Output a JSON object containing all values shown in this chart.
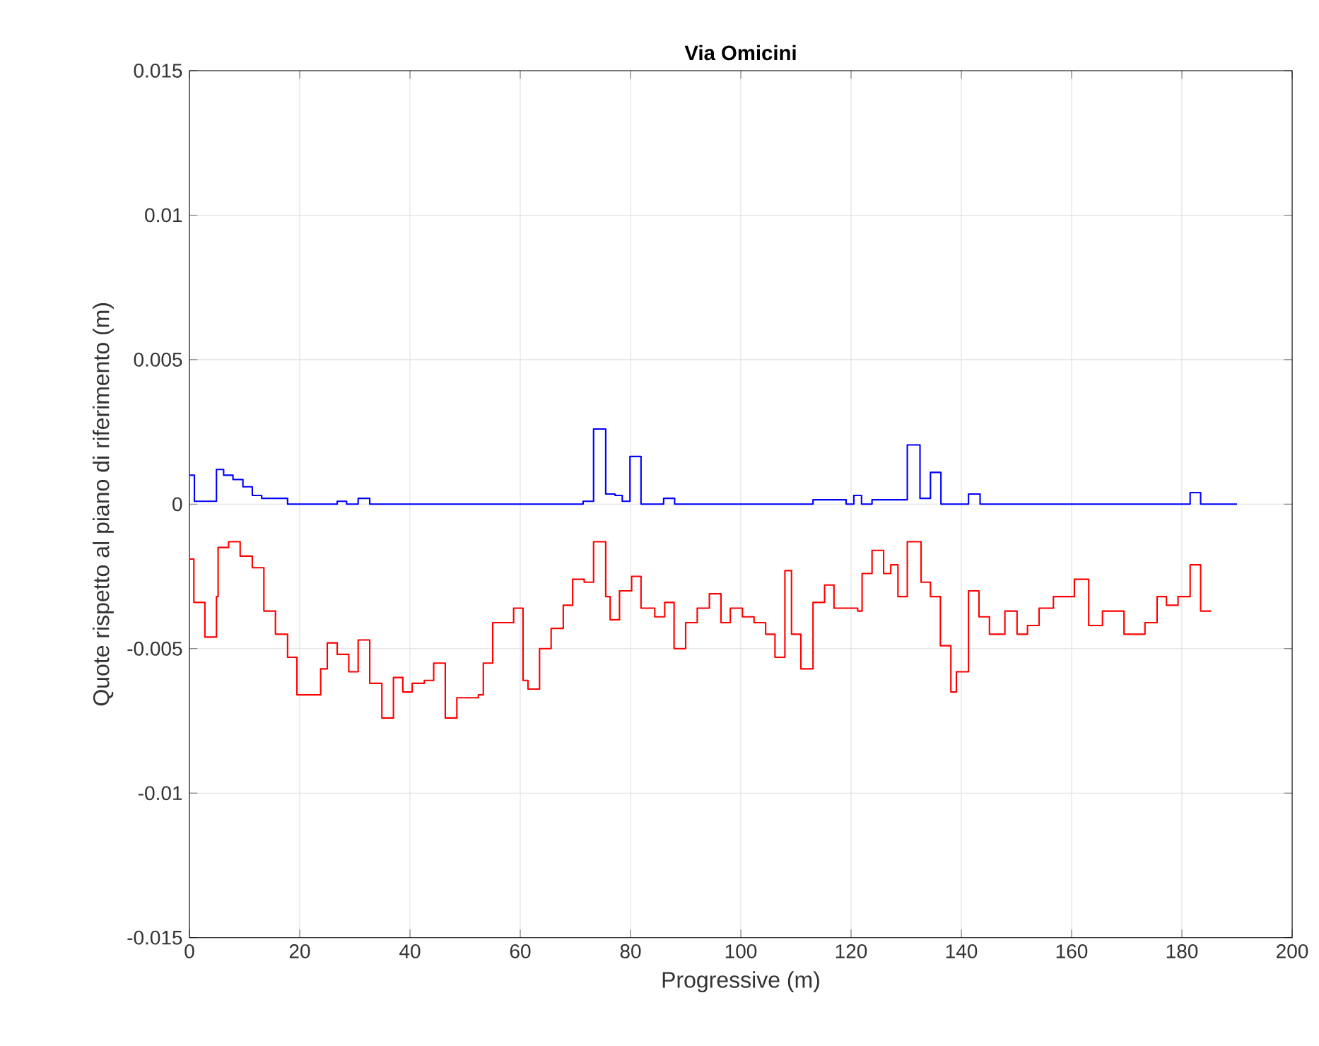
{
  "chart_data": {
    "type": "step",
    "title": "Via Omicini",
    "xlabel": "Progressive (m)",
    "ylabel": "Quote rispetto al piano di riferimento (m)",
    "xlim": [
      0,
      200
    ],
    "ylim": [
      -0.015,
      0.015
    ],
    "xticks": [
      0,
      20,
      40,
      60,
      80,
      100,
      120,
      140,
      160,
      180,
      200
    ],
    "yticks": [
      -0.015,
      -0.01,
      -0.005,
      0,
      0.005,
      0.01,
      0.015
    ],
    "grid": true,
    "marker": "none",
    "line_style": "solid",
    "series": [
      {
        "color": "#0000ff",
        "x": [
          0,
          0.9,
          4.9,
          6.2,
          7.9,
          9.7,
          11.4,
          13.1,
          17.8,
          26.8,
          28.5,
          30.6,
          32.7,
          71.4,
          73.3,
          75.5,
          77.2,
          78.5,
          79.9,
          81.9,
          86,
          88,
          113.1,
          119.1,
          120.5,
          121.9,
          123.8,
          130.2,
          132.5,
          134.4,
          136.3,
          141.3,
          143.4,
          181.5,
          183.4,
          190
        ],
        "values": [
          0.001,
          0.0001,
          0.0012,
          0.001,
          0.00085,
          0.0006,
          0.0003,
          0.0002,
          0,
          0.0001,
          0,
          0.0002,
          0,
          0.0001,
          0.0026,
          0.00035,
          0.0003,
          0.0001,
          0.00165,
          0,
          0.0002,
          0,
          0.00015,
          0,
          0.0003,
          0,
          0.00015,
          0.00205,
          0.0002,
          0.0011,
          0,
          0.00035,
          0,
          0.0004,
          0,
          0
        ]
      },
      {
        "color": "#ff0000",
        "x": [
          0,
          0.8,
          2.8,
          4.9,
          5.2,
          7.1,
          9.2,
          11.4,
          13.5,
          15.6,
          17.8,
          19.5,
          23.8,
          25,
          26.8,
          28.9,
          30.6,
          32.7,
          34.9,
          37,
          38.7,
          40.4,
          42.6,
          44.3,
          46.4,
          48.5,
          52.4,
          53.3,
          55,
          58.8,
          60.5,
          61.4,
          63.5,
          65.6,
          67.8,
          69.5,
          71.6,
          73.3,
          75.5,
          76.3,
          78,
          80.2,
          81.9,
          84.4,
          86.2,
          87.9,
          90,
          92.1,
          94.3,
          96.4,
          98.1,
          100.3,
          102.4,
          104.5,
          106.2,
          108,
          109.2,
          110.9,
          113.1,
          115.2,
          116.9,
          121.2,
          122,
          123.8,
          125.9,
          127.2,
          128.5,
          130.2,
          132.7,
          134.4,
          136.2,
          138.1,
          139.1,
          141.3,
          143.2,
          145.1,
          147.9,
          150.1,
          152,
          154.1,
          156.7,
          160.5,
          163.1,
          165.6,
          169.5,
          173.3,
          175.5,
          177.2,
          179.3,
          181.5,
          183.4,
          185.3
        ],
        "values": [
          -0.0019,
          -0.0034,
          -0.0046,
          -0.0032,
          -0.0015,
          -0.0013,
          -0.0018,
          -0.0022,
          -0.0037,
          -0.0045,
          -0.0053,
          -0.0066,
          -0.0057,
          -0.0048,
          -0.0052,
          -0.0058,
          -0.0047,
          -0.0062,
          -0.0074,
          -0.006,
          -0.0065,
          -0.0062,
          -0.0061,
          -0.0055,
          -0.0074,
          -0.0067,
          -0.0066,
          -0.0055,
          -0.0041,
          -0.0036,
          -0.0061,
          -0.0064,
          -0.005,
          -0.0043,
          -0.0035,
          -0.0026,
          -0.0027,
          -0.0013,
          -0.0032,
          -0.004,
          -0.003,
          -0.0025,
          -0.0036,
          -0.0039,
          -0.0034,
          -0.005,
          -0.0041,
          -0.0036,
          -0.0031,
          -0.0041,
          -0.0036,
          -0.0039,
          -0.0041,
          -0.0045,
          -0.0053,
          -0.0023,
          -0.0045,
          -0.0057,
          -0.0034,
          -0.0028,
          -0.0036,
          -0.0037,
          -0.0024,
          -0.0016,
          -0.0024,
          -0.0021,
          -0.0032,
          -0.0013,
          -0.0027,
          -0.0032,
          -0.0049,
          -0.0065,
          -0.0058,
          -0.003,
          -0.0039,
          -0.0045,
          -0.0037,
          -0.0045,
          -0.0042,
          -0.0036,
          -0.0032,
          -0.0026,
          -0.0042,
          -0.0037,
          -0.0045,
          -0.0041,
          -0.0032,
          -0.0035,
          -0.0032,
          -0.0021,
          -0.0037,
          -0.0037
        ]
      }
    ]
  }
}
